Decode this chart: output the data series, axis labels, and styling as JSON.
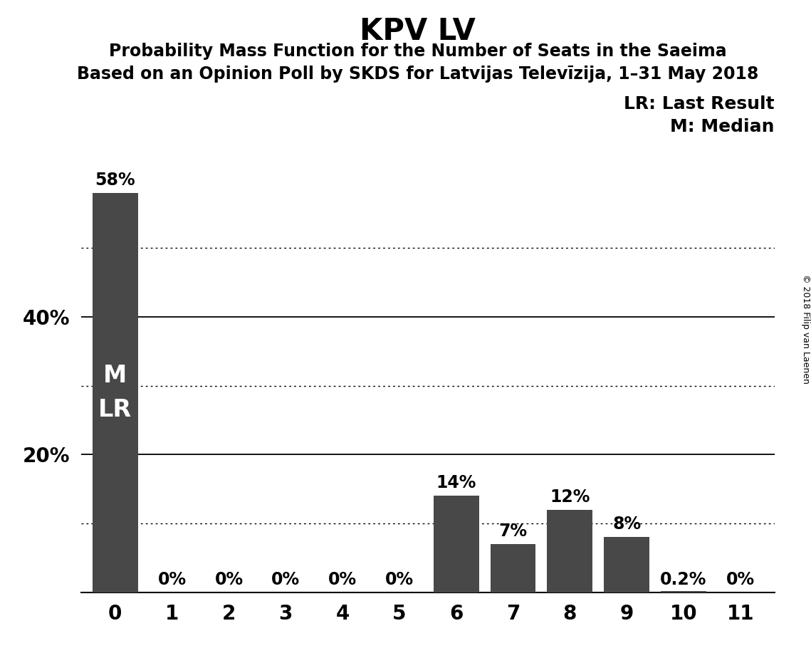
{
  "title": "KPV LV",
  "subtitle1": "Probability Mass Function for the Number of Seats in the Saeima",
  "subtitle2": "Based on an Opinion Poll by SKDS for Latvijas Televīzija, 1–31 May 2018",
  "copyright": "© 2018 Filip van Laenen",
  "legend_lr": "LR: Last Result",
  "legend_m": "M: Median",
  "categories": [
    0,
    1,
    2,
    3,
    4,
    5,
    6,
    7,
    8,
    9,
    10,
    11
  ],
  "values": [
    0.58,
    0.0,
    0.0,
    0.0,
    0.0,
    0.0,
    0.14,
    0.07,
    0.12,
    0.08,
    0.002,
    0.0
  ],
  "bar_color": "#484848",
  "background_color": "#ffffff",
  "bar_labels": [
    "58%",
    "0%",
    "0%",
    "0%",
    "0%",
    "0%",
    "14%",
    "7%",
    "12%",
    "8%",
    "0.2%",
    "0%"
  ],
  "bar0_inside_labels": [
    "M",
    "LR"
  ],
  "ylim": [
    0,
    0.65
  ],
  "solid_gridlines": [
    0.2,
    0.4
  ],
  "dotted_gridlines": [
    0.1,
    0.3,
    0.5
  ],
  "ytick_positions": [
    0.2,
    0.4
  ],
  "ytick_labels": [
    "20%",
    "40%"
  ],
  "title_fontsize": 30,
  "subtitle_fontsize": 17,
  "label_fontsize": 17,
  "tick_fontsize": 20,
  "inside_label_fontsize": 24,
  "legend_fontsize": 18,
  "copyright_fontsize": 9
}
